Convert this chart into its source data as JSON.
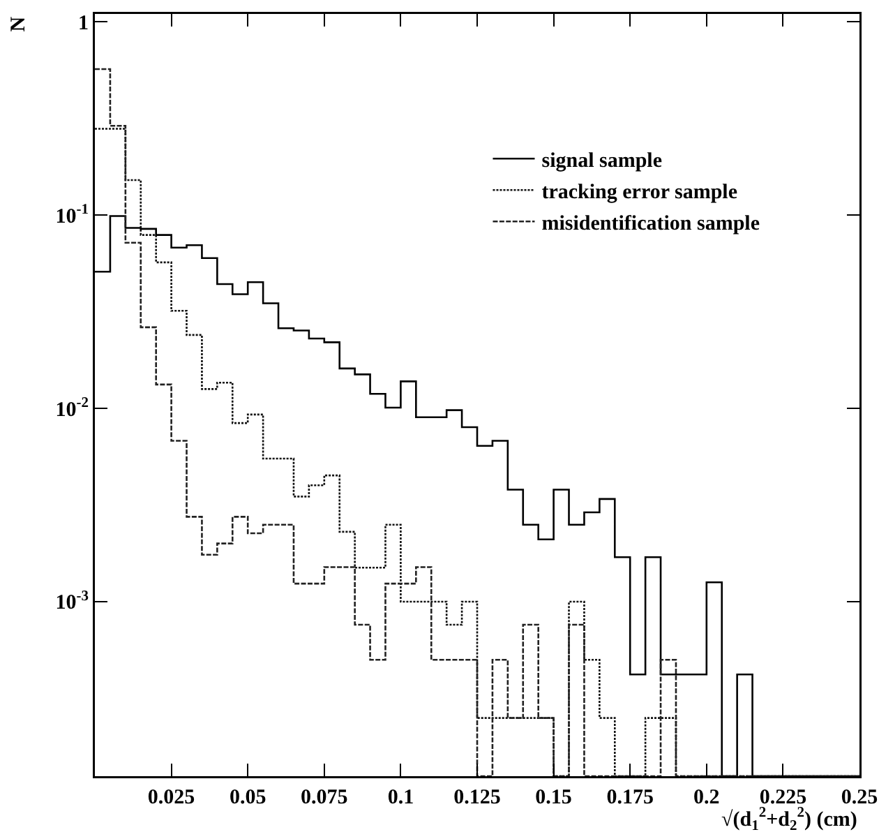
{
  "chart_data": {
    "type": "histogram",
    "xlabel": "√(d$_{1}$$^{2}$+d$_{2}$$^{2}$) (cm)",
    "ylabel": "N",
    "bins": [
      0,
      0.005,
      0.01,
      0.015,
      0.02,
      0.025,
      0.03,
      0.035,
      0.04,
      0.045,
      0.05,
      0.055,
      0.06,
      0.065,
      0.07,
      0.075,
      0.08,
      0.085,
      0.09,
      0.095,
      0.1,
      0.105,
      0.11,
      0.115,
      0.12,
      0.125,
      0.13,
      0.135,
      0.14,
      0.145,
      0.15,
      0.155,
      0.16,
      0.165,
      0.17,
      0.175,
      0.18,
      0.185,
      0.19,
      0.195,
      0.2,
      0.205,
      0.21,
      0.215,
      0.22,
      0.225,
      0.23,
      0.235,
      0.24,
      0.245,
      0.25
    ],
    "series": [
      {
        "name": "signal sample",
        "color": "#000000",
        "line_style": "solid",
        "values": [
          0.051,
          0.099,
          0.086,
          0.085,
          0.079,
          0.068,
          0.07,
          0.06,
          0.044,
          0.039,
          0.045,
          0.035,
          0.026,
          0.0253,
          0.023,
          0.022,
          0.0161,
          0.015,
          0.0119,
          0.0101,
          0.0138,
          0.009,
          0.009,
          0.0098,
          0.008,
          0.0064,
          0.0068,
          0.0038,
          0.0025,
          0.0021,
          0.0038,
          0.0025,
          0.0029,
          0.0034,
          0.0017,
          0.00042,
          0.0017,
          0.00042,
          0.00042,
          0.00042,
          0.00126,
          null,
          0.00042,
          null,
          null,
          null,
          null,
          null,
          null,
          null
        ]
      },
      {
        "name": "tracking error sample",
        "color": "#111111",
        "line_style": "dotted",
        "values": [
          0.28,
          0.28,
          0.152,
          0.079,
          0.057,
          0.032,
          0.024,
          0.0126,
          0.0136,
          0.0084,
          0.0093,
          0.0055,
          0.0055,
          0.0035,
          0.004,
          0.0045,
          0.0023,
          0.0015,
          0.0015,
          0.0025,
          0.001,
          0.001,
          0.001,
          0.00076,
          0.001,
          0.00025,
          0.00025,
          0.00025,
          0.00025,
          0.00025,
          null,
          0.001,
          0.0005,
          0.00025,
          null,
          null,
          0.00025,
          0.00025,
          null,
          null,
          null,
          null,
          null,
          null,
          null,
          null,
          null,
          null,
          null,
          null
        ]
      },
      {
        "name": "misidentification sample",
        "color": "#222222",
        "line_style": "dashed",
        "values": [
          0.57,
          0.29,
          0.072,
          0.0263,
          0.0133,
          0.0068,
          0.00275,
          0.00175,
          0.002,
          0.00275,
          0.00226,
          0.0025,
          0.0025,
          0.00124,
          0.00124,
          0.00151,
          0.00151,
          0.00076,
          0.0005,
          0.00124,
          0.00124,
          0.00151,
          0.0005,
          0.0005,
          0.0005,
          null,
          0.0005,
          0.00025,
          0.00076,
          0.00025,
          null,
          0.00076,
          null,
          null,
          null,
          null,
          null,
          0.0005,
          null,
          null,
          null,
          null,
          null,
          null,
          null,
          null,
          null,
          null,
          null,
          null
        ]
      }
    ],
    "xlim": [
      0,
      0.25
    ],
    "xticks": [
      0.025,
      0.05,
      0.075,
      0.1,
      0.125,
      0.15,
      0.175,
      0.2,
      0.225,
      0.25
    ],
    "ylim": [
      0.000125,
      1.1
    ],
    "yticks": [
      {
        "value": 0.001,
        "label": "10$^{-3}$"
      },
      {
        "value": 0.01,
        "label": "10$^{-2}$"
      },
      {
        "value": 0.1,
        "label": "10$^{-1}$"
      },
      1
    ],
    "log": "y",
    "grid": false,
    "legend": "top right"
  }
}
